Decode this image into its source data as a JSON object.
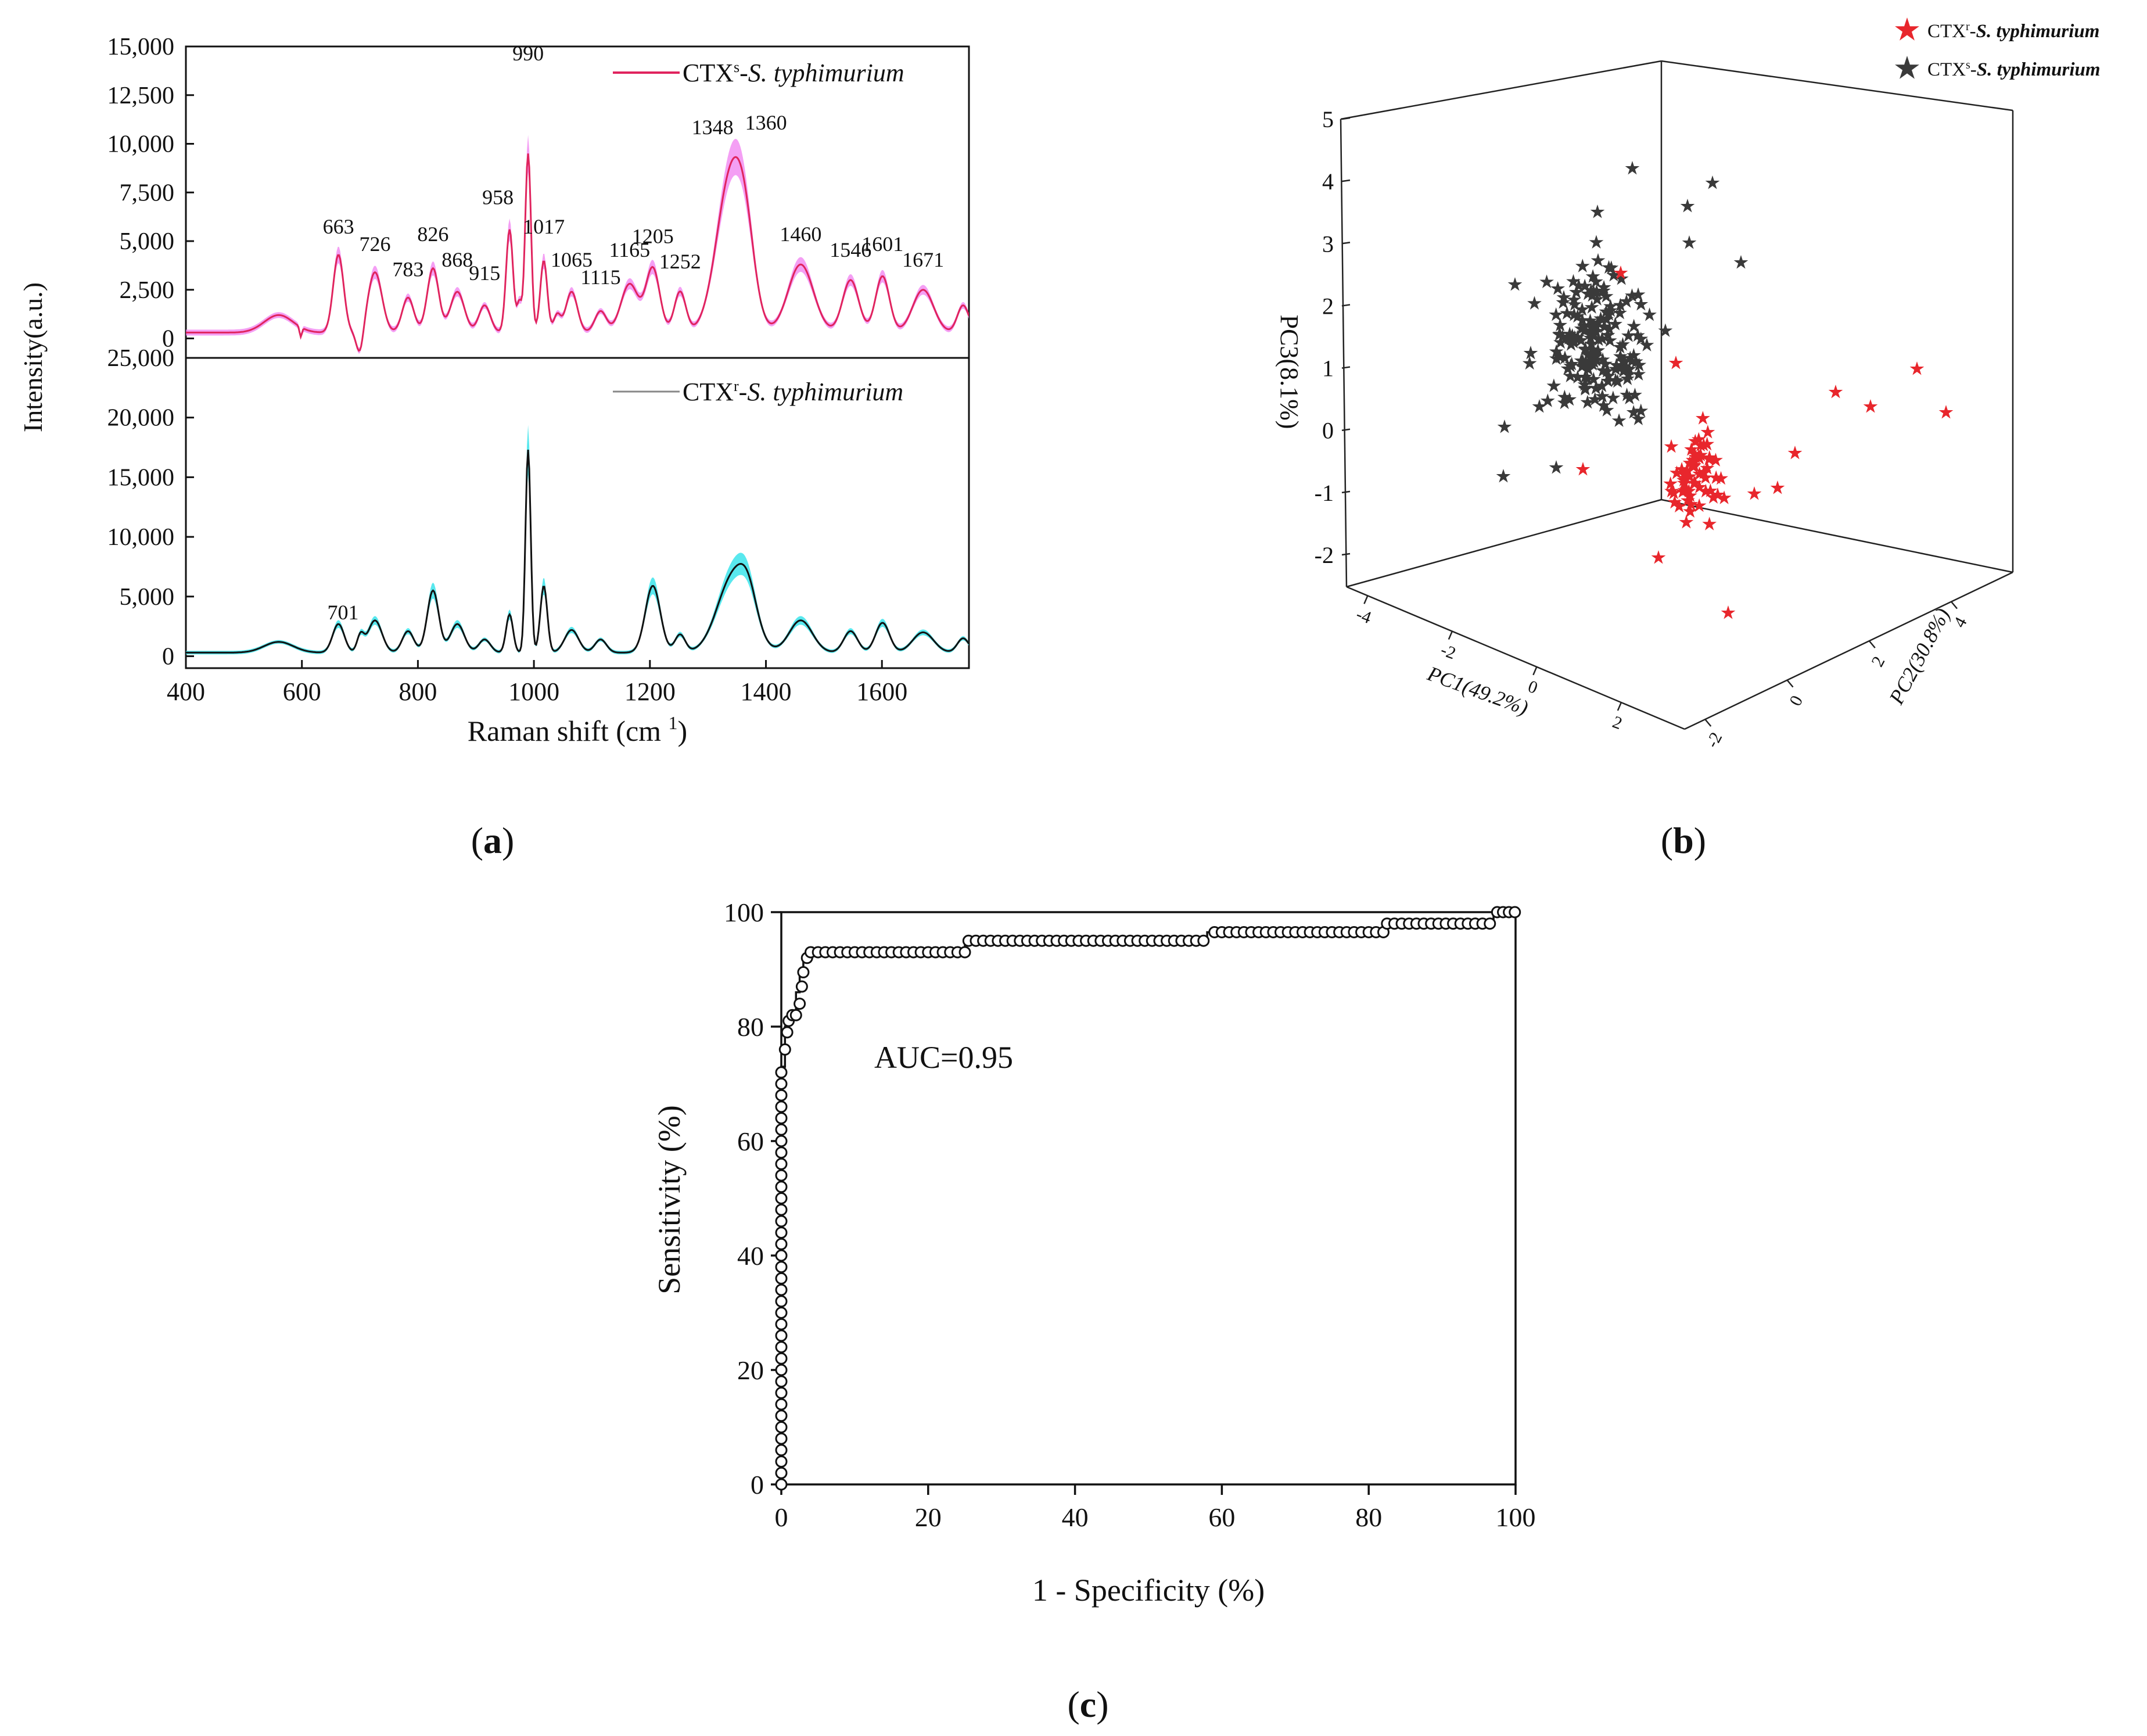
{
  "colors": {
    "susceptible_line": "#e0245e",
    "susceptible_band": "#f07ff0",
    "resistant_line": "#111111",
    "resistant_band": "#22e0e8",
    "red_star": "#e8262c",
    "dark_star": "#3a3a3a"
  },
  "panels": {
    "a": {
      "label_open": "(",
      "label_letter": "a",
      "label_close": ")"
    },
    "b": {
      "label_open": "(",
      "label_letter": "b",
      "label_close": ")"
    },
    "c": {
      "label_open": "(",
      "label_letter": "c",
      "label_close": ")"
    }
  },
  "chart_data": [
    {
      "id": "a",
      "type": "line",
      "xlabel": "Raman shift (cm ",
      "xlabel_sup": "1",
      "xlabel_close": ")",
      "ylabel": "Intensity(a.u.)",
      "xlim": [
        400,
        1750
      ],
      "x_ticks": [
        "400",
        "600",
        "800",
        "1000",
        "1200",
        "1400",
        "1600"
      ],
      "top": {
        "legend_prefix": "CTX",
        "legend_sup": "s",
        "legend_mid": "-",
        "legend_italic": "S. typhimurium",
        "ylim": [
          -1000,
          15000
        ],
        "y_ticks": [
          "0",
          "2,500",
          "5,000",
          "7,500",
          "10,000",
          "12,500",
          "15,000"
        ],
        "peak_labels": [
          "663",
          "726",
          "783",
          "826",
          "868",
          "915",
          "958",
          "990",
          "1017",
          "1065",
          "1115",
          "1165",
          "1205",
          "1252",
          "1348",
          "1360",
          "1460",
          "1546",
          "1601",
          "1671"
        ],
        "peak_x": [
          663,
          726,
          783,
          826,
          868,
          915,
          958,
          990,
          1017,
          1065,
          1115,
          1165,
          1205,
          1252,
          1348,
          1360,
          1460,
          1546,
          1601,
          1671
        ],
        "peak_intensity": [
          4200,
          3300,
          2000,
          3800,
          2500,
          1800,
          5700,
          9800,
          4200,
          2500,
          1600,
          3000,
          3700,
          2400,
          8700,
          8500,
          3800,
          3000,
          3300,
          2500
        ]
      },
      "bottom": {
        "legend_prefix": "CTX",
        "legend_sup": "r",
        "legend_mid": "-",
        "legend_italic": "S. typhimurium",
        "ylim": [
          -1000,
          25000
        ],
        "y_ticks": [
          "0",
          "5,000",
          "10,000",
          "15,000",
          "20,000",
          "25,000"
        ],
        "peak_labels": [
          "701"
        ],
        "peak_x": [
          701
        ],
        "peak_intensity": [
          2600
        ]
      }
    },
    {
      "id": "b",
      "type": "scatter",
      "xlabel": "PC1(49.2%)",
      "ylabel_right": "PC2(30.8%)",
      "zlabel": "PC3(8.1%)",
      "z_ticks": [
        "-2",
        "-1",
        "0",
        "1",
        "2",
        "3",
        "4",
        "5"
      ],
      "x_ticks": [
        "-4",
        "-2",
        "0",
        "2"
      ],
      "y_ticks": [
        "-2",
        "0",
        "2",
        "4"
      ],
      "legend": [
        {
          "prefix": "CTX",
          "sup": "r",
          "mid": "-",
          "italic": "S. typhimurium"
        },
        {
          "prefix": "CTX",
          "sup": "s",
          "mid": "-",
          "italic": "S. typhimurium"
        }
      ]
    },
    {
      "id": "c",
      "type": "line",
      "title": "",
      "xlabel": "1 - Specificity (%)",
      "ylabel": "Sensitivity (%)",
      "annotation": "AUC=0.95",
      "xlim": [
        0,
        100
      ],
      "ylim": [
        0,
        100
      ],
      "x_ticks": [
        "0",
        "20",
        "40",
        "60",
        "80",
        "100"
      ],
      "y_ticks": [
        "0",
        "20",
        "40",
        "60",
        "80",
        "100"
      ],
      "roc_x": [
        0,
        0.5,
        1,
        2,
        2.5,
        3,
        3.5,
        4,
        10,
        20,
        25,
        25.5,
        35,
        50,
        58,
        59,
        70,
        82,
        82.5,
        90,
        97,
        97.5,
        100
      ],
      "roc_y": [
        0,
        73,
        80,
        82,
        86,
        90,
        92,
        93,
        93,
        93,
        93,
        95,
        95,
        95,
        95,
        96.5,
        96.5,
        96.5,
        98,
        98,
        98,
        100,
        100
      ]
    }
  ]
}
